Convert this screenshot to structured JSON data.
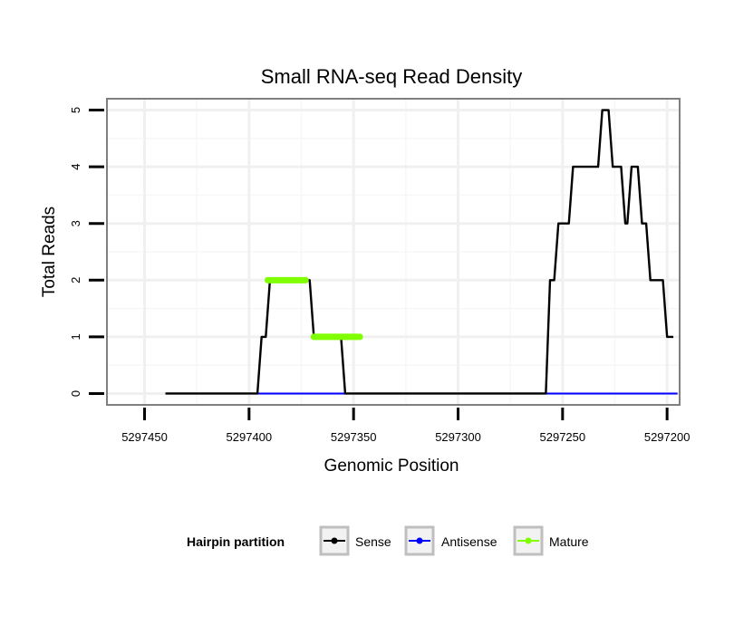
{
  "chart_data": {
    "type": "line",
    "title": "Small RNA-seq Read Density",
    "xlabel": "Genomic Position",
    "ylabel": "Total Reads",
    "x_reversed": true,
    "xlim": [
      5297468,
      5297194
    ],
    "ylim": [
      -0.2,
      5.2
    ],
    "x_ticks": [
      5297450,
      5297400,
      5297350,
      5297300,
      5297250,
      5297200
    ],
    "x_tick_labels": [
      "5297450",
      "5297400",
      "5297350",
      "5297300",
      "5297250",
      "5297200"
    ],
    "y_ticks": [
      0,
      1,
      2,
      3,
      4,
      5
    ],
    "y_tick_labels": [
      "0",
      "1",
      "2",
      "3",
      "4",
      "5"
    ],
    "grid": true,
    "series": [
      {
        "name": "Sense",
        "color": "#000000",
        "x": [
          5297440,
          5297396,
          5297394,
          5297392,
          5297390,
          5297371,
          5297369,
          5297356,
          5297354,
          5297258,
          5297256,
          5297254,
          5297252,
          5297247,
          5297245,
          5297233,
          5297231,
          5297228,
          5297226,
          5297222,
          5297220,
          5297219,
          5297217,
          5297214,
          5297212,
          5297210,
          5297208,
          5297202,
          5297200,
          5297199,
          5297197
        ],
        "values": [
          0,
          0,
          1,
          1,
          2,
          2,
          1,
          1,
          0,
          0,
          2,
          2,
          3,
          3,
          4,
          4,
          5,
          5,
          4,
          4,
          3,
          3,
          4,
          4,
          3,
          3,
          2,
          2,
          1,
          1,
          1
        ]
      },
      {
        "name": "Antisense",
        "color": "#0000ff",
        "x": [
          5297440,
          5297195
        ],
        "values": [
          0,
          0
        ]
      },
      {
        "name": "Mature",
        "color": "#7fff00",
        "segments": [
          {
            "x": [
              5297391,
              5297373
            ],
            "values": [
              2,
              2
            ]
          },
          {
            "x": [
              5297369,
              5297347
            ],
            "values": [
              1,
              1
            ]
          }
        ]
      }
    ],
    "legend": {
      "title": "Hairpin partition",
      "entries": [
        "Sense",
        "Antisense",
        "Mature"
      ],
      "colors": [
        "#000000",
        "#0000ff",
        "#7fff00"
      ],
      "position": "bottom"
    }
  }
}
